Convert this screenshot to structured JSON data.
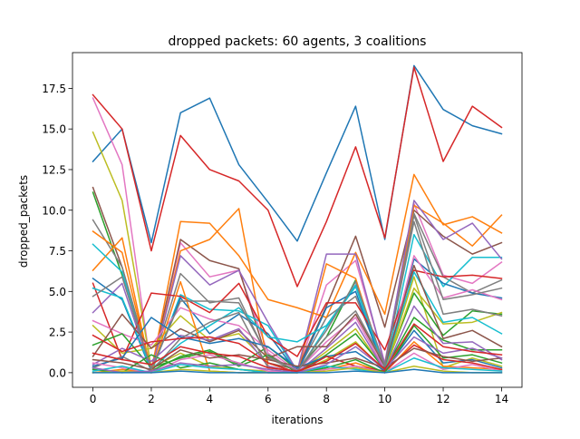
{
  "chart_data": {
    "type": "line",
    "title": "dropped packets: 60 agents, 3 coalitions",
    "xlabel": "iterations",
    "ylabel": "dropped_packets",
    "xlim": [
      -0.7,
      14.7
    ],
    "ylim": [
      -0.9,
      19.7
    ],
    "xticks": [
      0,
      2,
      4,
      6,
      8,
      10,
      12,
      14
    ],
    "yticks": [
      0.0,
      2.5,
      5.0,
      7.5,
      10.0,
      12.5,
      15.0,
      17.5
    ],
    "ytick_labels": [
      "0.0",
      "2.5",
      "5.0",
      "7.5",
      "10.0",
      "12.5",
      "15.0",
      "17.5"
    ],
    "grid": false,
    "legend": "none",
    "x": [
      0,
      1,
      2,
      3,
      4,
      5,
      6,
      7,
      8,
      9,
      10,
      11,
      12,
      13,
      14
    ],
    "series": [
      {
        "color": "#1f77b4",
        "values": [
          13.0,
          15.0,
          8.0,
          16.0,
          16.9,
          12.8,
          10.5,
          8.1,
          12.3,
          16.4,
          8.2,
          18.9,
          16.2,
          15.2,
          14.7
        ]
      },
      {
        "color": "#d62728",
        "values": [
          17.1,
          15.0,
          7.5,
          14.6,
          12.5,
          11.8,
          10.0,
          5.3,
          9.3,
          13.9,
          8.3,
          18.8,
          13.0,
          16.4,
          15.1
        ]
      },
      {
        "color": "#e377c2",
        "values": [
          16.9,
          12.8,
          0.1,
          8.0,
          5.9,
          6.3,
          1.2,
          0.0,
          5.4,
          6.9,
          0.6,
          10.4,
          6.0,
          5.5,
          6.8
        ]
      },
      {
        "color": "#bcbd22",
        "values": [
          14.8,
          10.6,
          0.3,
          1.2,
          0.4,
          0.2,
          0.1,
          0.0,
          1.3,
          2.7,
          0.1,
          5.9,
          0.3,
          0.9,
          0.4
        ]
      },
      {
        "color": "#8c564b",
        "values": [
          11.4,
          6.5,
          0.2,
          8.2,
          6.9,
          6.4,
          0.6,
          0.2,
          4.1,
          8.4,
          2.8,
          10.0,
          8.4,
          7.3,
          8.0
        ]
      },
      {
        "color": "#2ca02c",
        "values": [
          11.1,
          6.0,
          0.1,
          1.0,
          1.4,
          0.5,
          1.6,
          0.2,
          2.2,
          5.7,
          0.2,
          4.9,
          2.3,
          3.8,
          3.6
        ]
      },
      {
        "color": "#7f7f7f",
        "values": [
          9.4,
          6.5,
          0.3,
          6.1,
          4.3,
          4.6,
          0.9,
          0.1,
          3.4,
          4.7,
          0.3,
          9.8,
          5.9,
          4.9,
          5.7
        ]
      },
      {
        "color": "#ff7f0e",
        "values": [
          8.7,
          7.4,
          0.1,
          9.3,
          9.2,
          7.2,
          4.5,
          4.0,
          3.4,
          7.4,
          3.6,
          12.2,
          9.1,
          9.6,
          8.6
        ]
      },
      {
        "color": "#ff7f0e",
        "values": [
          6.3,
          8.3,
          0.0,
          7.5,
          8.2,
          10.1,
          0.4,
          0.0,
          6.7,
          5.8,
          0.2,
          10.3,
          9.2,
          7.8,
          9.7
        ]
      },
      {
        "color": "#17becf",
        "values": [
          7.9,
          6.2,
          0.0,
          4.8,
          3.9,
          3.8,
          2.9,
          0.0,
          2.8,
          5.3,
          0.1,
          8.5,
          5.3,
          7.1,
          7.1
        ]
      },
      {
        "color": "#1f77b4",
        "values": [
          5.8,
          4.5,
          0.1,
          4.6,
          2.4,
          3.6,
          2.4,
          0.0,
          4.0,
          5.0,
          0.0,
          7.0,
          5.5,
          4.9,
          4.6
        ]
      },
      {
        "color": "#9467bd",
        "values": [
          3.7,
          5.5,
          0.1,
          7.2,
          5.4,
          6.3,
          3.1,
          0.1,
          7.3,
          7.3,
          0.5,
          10.6,
          8.2,
          9.2,
          7.0
        ]
      },
      {
        "color": "#d62728",
        "values": [
          5.5,
          0.8,
          4.9,
          4.7,
          3.7,
          5.5,
          2.2,
          1.0,
          4.3,
          4.3,
          1.4,
          6.3,
          5.9,
          6.0,
          5.8
        ]
      },
      {
        "color": "#e377c2",
        "values": [
          3.2,
          2.4,
          1.7,
          4.0,
          3.3,
          2.9,
          1.4,
          0.1,
          1.9,
          3.4,
          0.2,
          7.2,
          4.6,
          5.1,
          4.5
        ]
      },
      {
        "color": "#bcbd22",
        "values": [
          2.9,
          1.2,
          1.5,
          3.5,
          2.0,
          2.4,
          0.6,
          0.0,
          0.8,
          1.9,
          0.1,
          5.2,
          3.0,
          3.1,
          3.7
        ]
      },
      {
        "color": "#17becf",
        "values": [
          5.2,
          4.6,
          0.2,
          1.8,
          2.9,
          4.0,
          2.2,
          1.9,
          2.9,
          5.4,
          0.3,
          6.2,
          3.1,
          3.4,
          2.4
        ]
      },
      {
        "color": "#8c564b",
        "values": [
          1.0,
          3.6,
          1.5,
          2.7,
          1.9,
          2.6,
          0.9,
          1.6,
          1.6,
          3.6,
          0.4,
          6.6,
          2.1,
          2.6,
          1.6
        ]
      },
      {
        "color": "#2ca02c",
        "values": [
          1.7,
          2.4,
          0.3,
          0.9,
          1.3,
          0.4,
          1.1,
          0.0,
          1.1,
          2.4,
          0.2,
          3.4,
          2.0,
          1.4,
          1.4
        ]
      },
      {
        "color": "#9467bd",
        "values": [
          0.5,
          1.5,
          0.7,
          2.3,
          2.0,
          2.7,
          0.4,
          0.0,
          1.5,
          3.1,
          0.1,
          4.1,
          1.8,
          1.9,
          0.8
        ]
      },
      {
        "color": "#7f7f7f",
        "values": [
          0.3,
          1.0,
          0.1,
          2.1,
          3.1,
          3.7,
          0.3,
          0.1,
          2.2,
          3.8,
          0.5,
          9.3,
          3.6,
          3.9,
          3.5
        ]
      },
      {
        "color": "#ff7f0e",
        "values": [
          0.0,
          0.2,
          0.0,
          5.6,
          0.1,
          0.0,
          0.0,
          0.0,
          0.2,
          0.6,
          0.0,
          1.9,
          0.4,
          0.3,
          0.2
        ]
      },
      {
        "color": "#1f77b4",
        "values": [
          0.4,
          0.9,
          3.4,
          2.2,
          1.8,
          2.1,
          1.6,
          0.3,
          1.0,
          1.3,
          0.1,
          2.6,
          0.6,
          0.8,
          0.3
        ]
      },
      {
        "color": "#d62728",
        "values": [
          2.3,
          1.3,
          1.9,
          2.1,
          2.2,
          1.8,
          0.6,
          0.0,
          1.0,
          0.4,
          0.1,
          1.7,
          0.8,
          0.6,
          0.2
        ]
      },
      {
        "color": "#e377c2",
        "values": [
          0.6,
          0.3,
          0.0,
          0.8,
          1.1,
          0.6,
          0.1,
          0.0,
          0.2,
          0.4,
          0.0,
          1.2,
          0.2,
          0.5,
          0.1
        ]
      },
      {
        "color": "#2ca02c",
        "values": [
          0.2,
          0.0,
          1.1,
          0.3,
          0.6,
          0.2,
          0.0,
          0.0,
          0.3,
          0.8,
          0.0,
          2.9,
          0.9,
          1.1,
          0.6
        ]
      },
      {
        "color": "#8c564b",
        "values": [
          0.8,
          0.6,
          0.2,
          1.4,
          0.9,
          1.1,
          0.8,
          0.4,
          0.6,
          0.9,
          0.3,
          1.5,
          1.0,
          0.7,
          0.9
        ]
      },
      {
        "color": "#17becf",
        "values": [
          0.1,
          0.4,
          0.0,
          0.5,
          0.3,
          0.2,
          0.0,
          0.0,
          0.4,
          0.2,
          0.0,
          0.9,
          0.3,
          0.2,
          0.1
        ]
      },
      {
        "color": "#bcbd22",
        "values": [
          0.0,
          0.1,
          0.0,
          0.2,
          0.1,
          0.0,
          0.0,
          0.0,
          0.1,
          0.3,
          0.0,
          0.4,
          0.1,
          0.0,
          0.0
        ]
      },
      {
        "color": "#9467bd",
        "values": [
          0.3,
          0.0,
          0.1,
          0.6,
          0.4,
          0.5,
          0.2,
          0.0,
          0.5,
          1.6,
          0.2,
          2.2,
          1.2,
          1.5,
          0.9
        ]
      },
      {
        "color": "#7f7f7f",
        "values": [
          4.7,
          5.9,
          0.2,
          4.4,
          4.4,
          4.3,
          1.0,
          0.1,
          2.6,
          5.6,
          0.4,
          9.7,
          4.5,
          4.8,
          5.2
        ]
      },
      {
        "color": "#1f77b4",
        "values": [
          0.0,
          0.0,
          0.0,
          0.1,
          0.0,
          0.0,
          0.0,
          0.0,
          0.0,
          0.1,
          0.0,
          0.2,
          0.0,
          0.0,
          0.0
        ]
      },
      {
        "color": "#d62728",
        "values": [
          1.2,
          0.8,
          0.5,
          1.6,
          1.2,
          1.0,
          0.3,
          0.1,
          0.7,
          1.8,
          0.2,
          3.0,
          1.6,
          1.3,
          1.1
        ]
      }
    ]
  }
}
